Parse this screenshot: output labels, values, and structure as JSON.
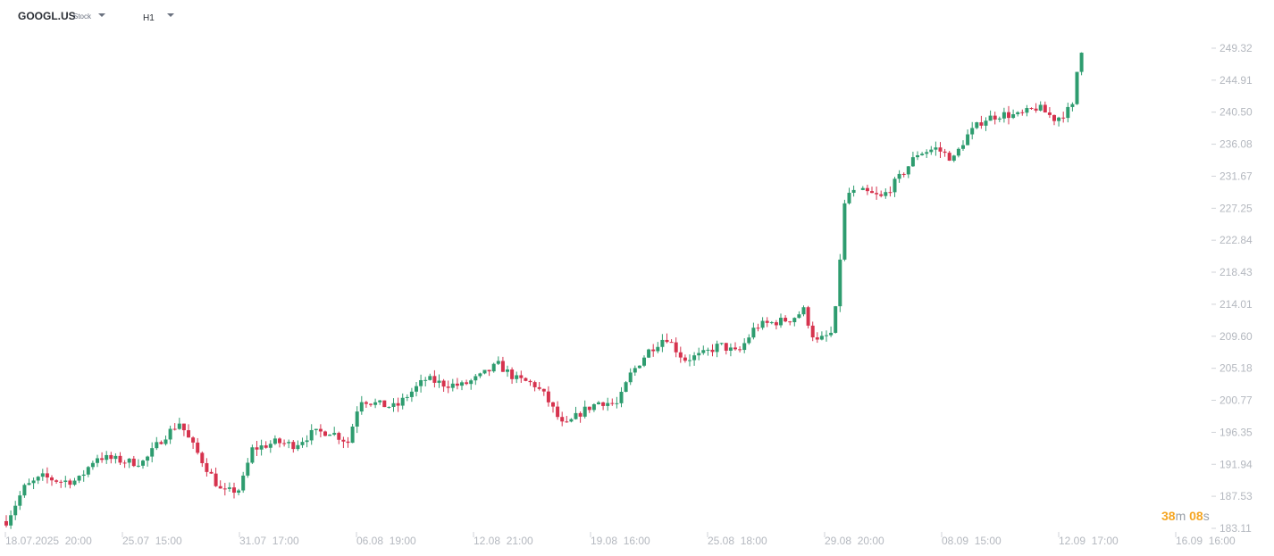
{
  "toolbar": {
    "symbol": "GOOGL.US",
    "symbol_type": "Stock",
    "timeframe": "H1"
  },
  "countdown": {
    "minutes": "38",
    "minutes_unit": "m",
    "seconds": "08",
    "seconds_unit": "s"
  },
  "colors": {
    "up": "#2e9c6f",
    "down": "#d6334e",
    "axis_text": "#b4b8bf",
    "countdown": "#f5a623"
  },
  "chart_data": {
    "type": "candlestick",
    "title": "",
    "xlabel": "",
    "ylabel": "",
    "ylim": [
      183.11,
      251.5
    ],
    "y_ticks": [
      "249.32",
      "244.91",
      "240.50",
      "236.08",
      "231.67",
      "227.25",
      "222.84",
      "218.43",
      "214.01",
      "209.60",
      "205.18",
      "200.77",
      "196.35",
      "191.94",
      "187.53",
      "183.11"
    ],
    "x_ticks": [
      "18.07.2025  20:00",
      "25.07  15:00",
      "31.07  17:00",
      "06.08  19:00",
      "12.08  21:00",
      "19.08  16:00",
      "25.08  18:00",
      "29.08  20:00",
      "08.09  15:00",
      "12.09  17:00",
      "16.09  16:00"
    ],
    "path_x_days": [
      0,
      1,
      2,
      3,
      4,
      5,
      6,
      7,
      8,
      9,
      10
    ],
    "path": [
      [
        0,
        184.1
      ],
      [
        1.5,
        188.7
      ],
      [
        3,
        190.2
      ],
      [
        4.5,
        189.6
      ],
      [
        6,
        189.7
      ],
      [
        7.5,
        193.0
      ],
      [
        9,
        192.6
      ],
      [
        10.5,
        192.2
      ],
      [
        11.5,
        192.3
      ],
      [
        13,
        195.5
      ],
      [
        14.5,
        197.8
      ],
      [
        15,
        196.0
      ],
      [
        16.5,
        192.0
      ],
      [
        18,
        188.0
      ],
      [
        19.5,
        188.5
      ],
      [
        20.5,
        194.0
      ],
      [
        22.5,
        195.0
      ],
      [
        24,
        194.6
      ],
      [
        25.5,
        196.2
      ],
      [
        27,
        196.5
      ],
      [
        28.5,
        195.0
      ],
      [
        29.5,
        201.0
      ],
      [
        31,
        200.2
      ],
      [
        32.5,
        199.8
      ],
      [
        33.5,
        201.5
      ],
      [
        35,
        203.7
      ],
      [
        36.5,
        203.0
      ],
      [
        38,
        202.8
      ],
      [
        39.5,
        204.0
      ],
      [
        41,
        205.7
      ],
      [
        42.5,
        203.7
      ],
      [
        44,
        203.0
      ],
      [
        45,
        201.2
      ],
      [
        46.5,
        197.0
      ],
      [
        48,
        199.2
      ],
      [
        49.5,
        200.6
      ],
      [
        51,
        200.2
      ],
      [
        52,
        204.2
      ],
      [
        53.5,
        207.5
      ],
      [
        55,
        209.6
      ],
      [
        56.5,
        206.4
      ],
      [
        58,
        207.0
      ],
      [
        59.5,
        208.4
      ],
      [
        61,
        207.2
      ],
      [
        62.5,
        211.0
      ],
      [
        64,
        211.5
      ],
      [
        65.5,
        212.0
      ],
      [
        66.5,
        213.2
      ],
      [
        67.5,
        208.7
      ],
      [
        69,
        210.2
      ],
      [
        70,
        229.3
      ],
      [
        71.5,
        229.5
      ],
      [
        73,
        228.7
      ],
      [
        74.5,
        231.5
      ],
      [
        76,
        234.8
      ],
      [
        77.5,
        235.5
      ],
      [
        79,
        234.0
      ],
      [
        80,
        237.0
      ],
      [
        81.5,
        239.5
      ],
      [
        83,
        240.2
      ],
      [
        84.5,
        240.0
      ],
      [
        86,
        241.2
      ],
      [
        87.5,
        239.5
      ],
      [
        89,
        241.3
      ],
      [
        89.5,
        249.5
      ],
      [
        90,
        248.6
      ]
    ]
  }
}
